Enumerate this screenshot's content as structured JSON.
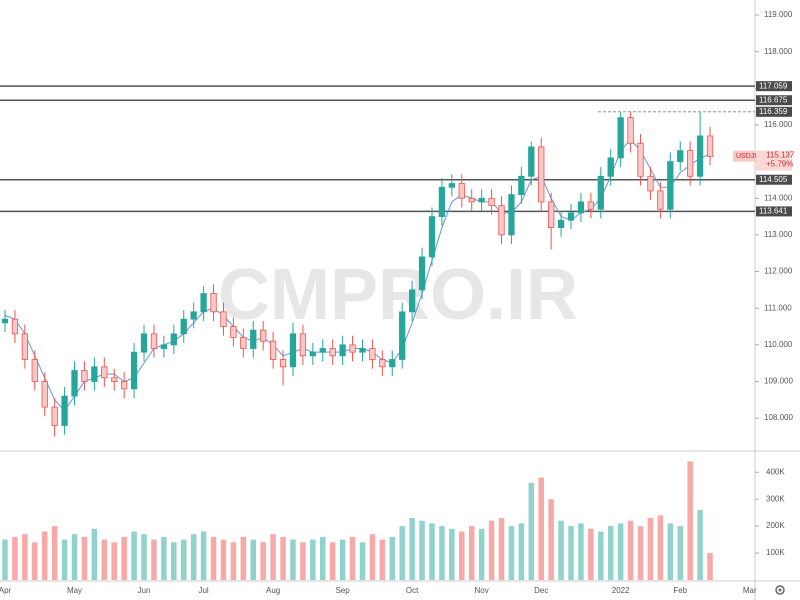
{
  "chart_data": {
    "type": "candlestick",
    "symbol": "USDJPY",
    "watermark": "CMPRO.IR",
    "categories": [
      "Apr",
      null,
      null,
      null,
      null,
      null,
      null,
      "May",
      null,
      null,
      null,
      null,
      null,
      null,
      "Jun",
      null,
      null,
      null,
      null,
      null,
      "Jul",
      null,
      null,
      null,
      null,
      null,
      null,
      "Aug",
      null,
      null,
      null,
      null,
      null,
      null,
      "Sep",
      null,
      null,
      null,
      null,
      null,
      null,
      "Oct",
      null,
      null,
      null,
      null,
      null,
      null,
      "Nov",
      null,
      null,
      null,
      null,
      null,
      "Dec",
      null,
      null,
      null,
      null,
      null,
      null,
      null,
      "2022",
      null,
      null,
      null,
      null,
      null,
      "Feb",
      null,
      null,
      null,
      null,
      null,
      null,
      "Mar"
    ],
    "open": [
      110.6,
      110.7,
      110.3,
      109.6,
      109.0,
      108.3,
      107.8,
      108.6,
      109.3,
      109.0,
      109.4,
      109.1,
      109.0,
      108.8,
      109.8,
      110.3,
      109.9,
      110.0,
      110.3,
      110.7,
      110.9,
      111.4,
      110.9,
      110.5,
      110.2,
      109.9,
      110.4,
      110.1,
      109.6,
      109.4,
      110.3,
      109.7,
      109.8,
      109.9,
      109.7,
      110.0,
      109.8,
      109.9,
      109.6,
      109.4,
      109.6,
      110.9,
      111.5,
      112.4,
      113.5,
      114.3,
      114.4,
      114.0,
      113.9,
      114.0,
      113.8,
      113.0,
      114.1,
      114.6,
      115.4,
      113.9,
      113.2,
      113.4,
      113.6,
      113.9,
      113.7,
      114.6,
      115.1,
      116.2,
      115.5,
      114.6,
      114.2,
      113.7,
      115.0,
      115.3,
      114.6,
      115.7,
      null,
      null,
      null,
      null
    ],
    "high": [
      110.95,
      110.95,
      110.55,
      109.85,
      109.25,
      108.55,
      108.85,
      109.55,
      109.55,
      109.65,
      109.65,
      109.35,
      109.25,
      110.05,
      110.55,
      110.55,
      110.25,
      110.55,
      110.95,
      111.15,
      111.6,
      111.65,
      111.15,
      110.75,
      110.45,
      110.65,
      110.65,
      110.35,
      109.85,
      110.6,
      110.55,
      110.05,
      110.15,
      110.15,
      110.25,
      110.25,
      110.15,
      110.15,
      109.85,
      109.85,
      111.15,
      111.75,
      112.65,
      113.75,
      114.55,
      114.65,
      114.65,
      114.25,
      114.25,
      114.25,
      114.05,
      114.35,
      114.85,
      115.55,
      115.65,
      114.15,
      113.65,
      113.85,
      114.15,
      114.15,
      114.85,
      115.35,
      116.35,
      116.35,
      115.75,
      114.85,
      114.45,
      115.25,
      115.55,
      115.55,
      116.35,
      115.95,
      null,
      null,
      null,
      null
    ],
    "low": [
      110.35,
      110.05,
      109.35,
      108.75,
      108.05,
      107.5,
      107.55,
      108.35,
      108.75,
      108.75,
      108.85,
      108.75,
      108.55,
      108.55,
      109.55,
      109.65,
      109.65,
      109.75,
      110.05,
      110.45,
      110.65,
      110.65,
      110.25,
      109.95,
      109.65,
      109.65,
      109.85,
      109.35,
      108.9,
      109.15,
      109.45,
      109.45,
      109.55,
      109.45,
      109.45,
      109.55,
      109.55,
      109.35,
      109.15,
      109.15,
      109.35,
      110.65,
      111.25,
      112.15,
      113.25,
      114.05,
      113.75,
      113.65,
      113.65,
      113.55,
      112.75,
      112.75,
      113.85,
      114.35,
      113.65,
      112.6,
      112.95,
      113.15,
      113.35,
      113.45,
      113.45,
      114.35,
      114.85,
      115.25,
      114.35,
      113.95,
      113.45,
      113.45,
      114.75,
      114.35,
      114.35,
      114.9,
      null,
      null,
      null,
      null
    ],
    "close": [
      110.7,
      110.3,
      109.6,
      109.0,
      108.3,
      107.8,
      108.6,
      109.3,
      109.0,
      109.4,
      109.1,
      109.0,
      108.8,
      109.8,
      110.3,
      109.9,
      110.0,
      110.3,
      110.7,
      110.9,
      111.4,
      110.9,
      110.5,
      110.2,
      109.9,
      110.4,
      110.1,
      109.6,
      109.4,
      110.3,
      109.7,
      109.8,
      109.9,
      109.7,
      110.0,
      109.8,
      109.9,
      109.6,
      109.4,
      109.6,
      110.9,
      111.5,
      112.4,
      113.5,
      114.3,
      114.4,
      114.0,
      113.9,
      114.0,
      113.8,
      113.0,
      114.1,
      114.6,
      115.4,
      113.9,
      113.2,
      113.4,
      113.6,
      113.9,
      113.7,
      114.6,
      115.1,
      116.2,
      115.5,
      114.6,
      114.2,
      113.7,
      115.0,
      115.3,
      114.6,
      115.7,
      115.14,
      null,
      null,
      null,
      null
    ],
    "ma": [
      110.8,
      110.7,
      110.3,
      109.7,
      109.1,
      108.5,
      108.2,
      108.6,
      109.0,
      109.1,
      109.2,
      109.2,
      109.0,
      109.1,
      109.5,
      109.9,
      110.0,
      110.1,
      110.3,
      110.6,
      110.9,
      111.0,
      110.8,
      110.5,
      110.2,
      110.1,
      110.2,
      110.0,
      109.7,
      109.8,
      109.9,
      109.8,
      109.8,
      109.8,
      109.8,
      109.9,
      109.9,
      109.8,
      109.6,
      109.5,
      109.9,
      110.6,
      111.4,
      112.3,
      113.2,
      113.9,
      114.1,
      114.0,
      113.9,
      113.9,
      113.6,
      113.6,
      113.9,
      114.5,
      114.6,
      114.0,
      113.5,
      113.4,
      113.6,
      113.7,
      114.0,
      114.6,
      115.3,
      115.6,
      115.3,
      114.8,
      114.3,
      114.3,
      114.7,
      114.9,
      115.1,
      115.2,
      null,
      null,
      null,
      null
    ],
    "volume": [
      150000,
      160000,
      170000,
      140000,
      180000,
      200000,
      150000,
      170000,
      160000,
      190000,
      150000,
      140000,
      160000,
      180000,
      170000,
      150000,
      160000,
      140000,
      150000,
      170000,
      180000,
      160000,
      150000,
      140000,
      160000,
      150000,
      140000,
      170000,
      160000,
      150000,
      140000,
      150000,
      160000,
      140000,
      150000,
      160000,
      140000,
      170000,
      150000,
      160000,
      200000,
      230000,
      220000,
      210000,
      200000,
      190000,
      180000,
      200000,
      190000,
      220000,
      230000,
      200000,
      210000,
      360000,
      380000,
      300000,
      220000,
      200000,
      210000,
      190000,
      180000,
      200000,
      210000,
      220000,
      200000,
      230000,
      240000,
      210000,
      200000,
      440000,
      260000,
      100000,
      null,
      null,
      null,
      null
    ],
    "up_color": "#26a69a",
    "down_color": "#ef5350",
    "ma_color": "#5b9bd5",
    "ylim": [
      107.13,
      119.41
    ],
    "yticks": [
      {
        "value": 108,
        "label": "108.000"
      },
      {
        "value": 109,
        "label": "109.000"
      },
      {
        "value": 110,
        "label": "110.000"
      },
      {
        "value": 111,
        "label": "111.000"
      },
      {
        "value": 112,
        "label": "112.000"
      },
      {
        "value": 113,
        "label": "113.000"
      },
      {
        "value": 114,
        "label": "114.000"
      },
      {
        "value": 115,
        "label": "115.000"
      },
      {
        "value": 116,
        "label": "116.000"
      },
      {
        "value": 117,
        "label": "117.000"
      },
      {
        "value": 118,
        "label": "118.000"
      },
      {
        "value": 119,
        "label": "119.000"
      }
    ],
    "volume_ylim": [
      0,
      475000
    ],
    "volume_yticks": [
      {
        "value": 100000,
        "label": "100K"
      },
      {
        "value": 200000,
        "label": "200K"
      },
      {
        "value": 300000,
        "label": "300K"
      },
      {
        "value": 400000,
        "label": "400K"
      }
    ],
    "levels": [
      117.059,
      116.675,
      116.359,
      114.505,
      113.641
    ],
    "level_styles": [
      "solid",
      "solid",
      "dashed",
      "solid",
      "solid"
    ],
    "last_price": 115.137,
    "change": {
      "value": 5.79,
      "label": "+5.79%"
    }
  }
}
